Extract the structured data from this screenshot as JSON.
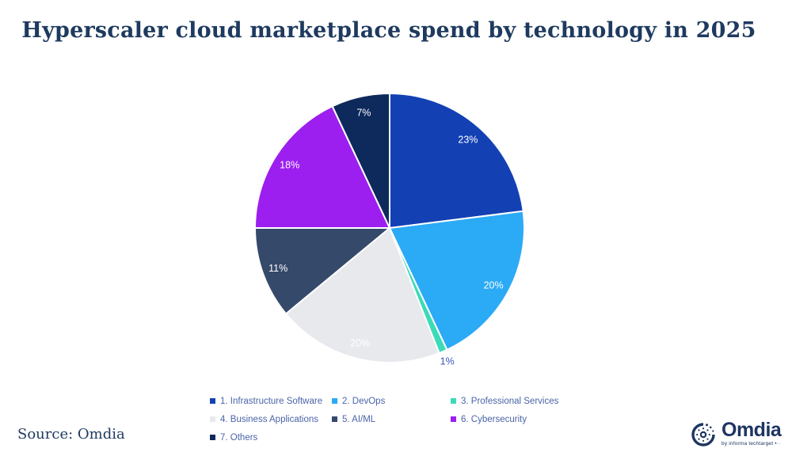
{
  "title": {
    "text": "Hyperscaler cloud marketplace spend by technology in 2025"
  },
  "source": {
    "label": "Source: Omdia"
  },
  "logo": {
    "name": "Omdia",
    "tagline": "by informa techtarget •··"
  },
  "colors": {
    "title_text": "#1e3a5f",
    "legend_text": "#4a64a8",
    "slice_stroke": "#ffffff"
  },
  "chart_data": {
    "type": "pie",
    "title": "Hyperscaler cloud marketplace spend by technology in 2025",
    "start_angle_deg": 0,
    "direction": "clockwise",
    "legend_position": "bottom",
    "slices": [
      {
        "label": "1. Infrastructure Software",
        "value": 23,
        "pct_label": "23%",
        "color": "#1341b4",
        "label_inside": true,
        "label_color": "#ffffff"
      },
      {
        "label": "2. DevOps",
        "value": 20,
        "pct_label": "20%",
        "color": "#2baaf6",
        "label_inside": true,
        "label_color": "#ffffff"
      },
      {
        "label": "3. Professional Services",
        "value": 1,
        "pct_label": "1%",
        "color": "#3bdbb8",
        "label_inside": false,
        "label_color": "#3c55c1"
      },
      {
        "label": "4. Business Applications",
        "value": 20,
        "pct_label": "20%",
        "color": "#e8e9ed",
        "label_inside": true,
        "label_color": "#ffffff"
      },
      {
        "label": "5. AI/ML",
        "value": 11,
        "pct_label": "11%",
        "color": "#35496b",
        "label_inside": true,
        "label_color": "#ffffff"
      },
      {
        "label": "6. Cybersecurity",
        "value": 18,
        "pct_label": "18%",
        "color": "#9c1ff0",
        "label_inside": true,
        "label_color": "#ffffff"
      },
      {
        "label": "7. Others",
        "value": 7,
        "pct_label": "7%",
        "color": "#0e2a5c",
        "label_inside": true,
        "label_color": "#ffffff"
      }
    ]
  }
}
